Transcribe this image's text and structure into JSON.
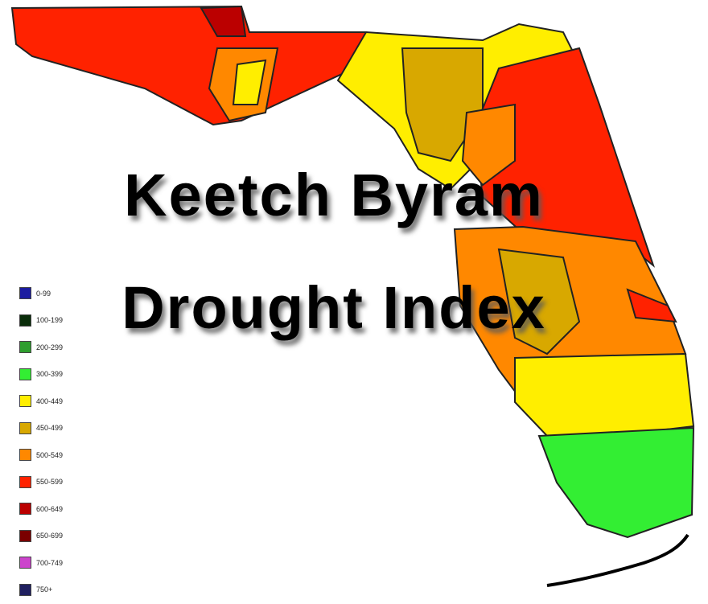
{
  "title": {
    "line1": "Keetch Byram",
    "line2": "Drought Index"
  },
  "legend": [
    {
      "label": "0-99",
      "color": "#1c1ca0"
    },
    {
      "label": "100-199",
      "color": "#0b2e0b"
    },
    {
      "label": "200-299",
      "color": "#2e9e2e"
    },
    {
      "label": "300-399",
      "color": "#33ee33"
    },
    {
      "label": "400-449",
      "color": "#ffee00"
    },
    {
      "label": "450-499",
      "color": "#d8a800"
    },
    {
      "label": "500-549",
      "color": "#ff8800"
    },
    {
      "label": "550-599",
      "color": "#ff2200"
    },
    {
      "label": "600-649",
      "color": "#bb0000"
    },
    {
      "label": "650-699",
      "color": "#7a0000"
    },
    {
      "label": "700-749",
      "color": "#cc44cc"
    },
    {
      "label": "750+",
      "color": "#202060"
    }
  ]
}
